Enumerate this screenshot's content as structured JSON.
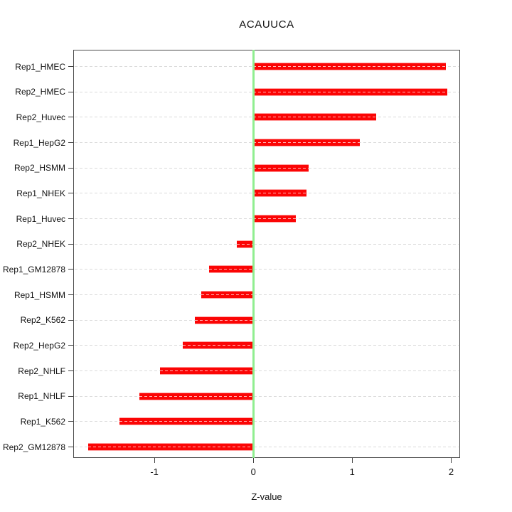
{
  "title": "ACAUUCA",
  "chart_data": {
    "type": "bar",
    "orientation": "horizontal",
    "title": "ACAUUCA",
    "xlabel": "Z-value",
    "categories": [
      "Rep1_HMEC",
      "Rep2_HMEC",
      "Rep2_Huvec",
      "Rep1_HepG2",
      "Rep2_HSMM",
      "Rep1_NHEK",
      "Rep1_Huvec",
      "Rep2_NHEK",
      "Rep1_GM12878",
      "Rep1_HSMM",
      "Rep2_K562",
      "Rep2_HepG2",
      "Rep2_NHLF",
      "Rep1_NHLF",
      "Rep1_K562",
      "Rep2_GM12878"
    ],
    "values": [
      1.95,
      1.96,
      1.24,
      1.08,
      0.56,
      0.54,
      0.43,
      -0.17,
      -0.45,
      -0.53,
      -0.59,
      -0.71,
      -0.94,
      -1.15,
      -1.35,
      -1.67
    ],
    "xlim": [
      -1.82,
      2.09
    ],
    "xticks": [
      -1,
      0,
      1,
      2
    ],
    "xtick_labels": [
      "-1",
      "0",
      "1",
      "2"
    ],
    "grid": "dashed-row-lines",
    "legend": "none",
    "colors": {
      "bar": "#fb0505",
      "bar_edge": "#ff9e9e",
      "bar_dash": "#ffd9d9",
      "zero_line": "#90ee90",
      "row_line": "#dadada",
      "box_border": "#4c4c4c",
      "text": "#111111",
      "background": "#ffffff"
    }
  }
}
